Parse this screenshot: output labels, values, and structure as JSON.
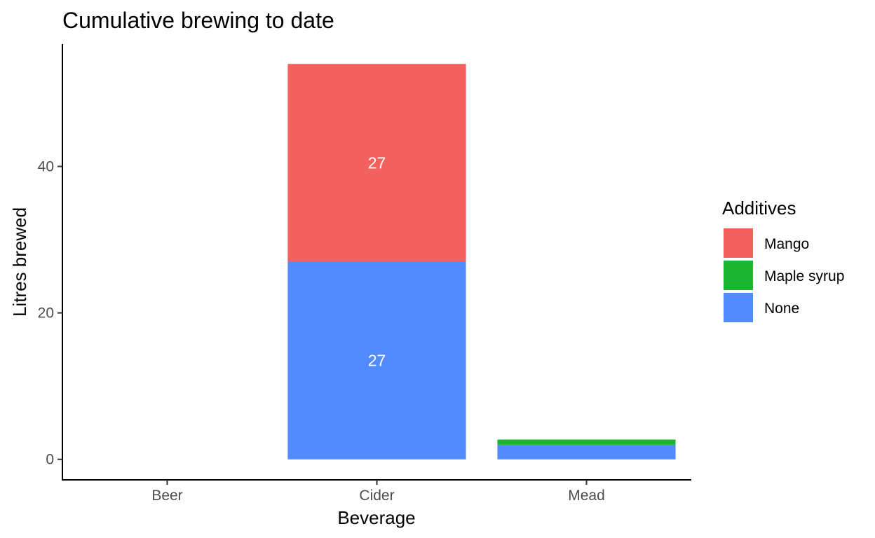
{
  "chart_data": {
    "type": "bar",
    "stacked": true,
    "title": "Cumulative brewing to date",
    "xlabel": "Beverage",
    "ylabel": "Litres brewed",
    "categories": [
      "Beer",
      "Cider",
      "Mead"
    ],
    "ylim": [
      -2.8,
      56.7
    ],
    "yticks": [
      0,
      20,
      40
    ],
    "series": [
      {
        "name": "None",
        "color": "#528bff",
        "values": [
          0,
          27,
          2
        ]
      },
      {
        "name": "Maple syrup",
        "color": "#1bb532",
        "values": [
          0,
          0,
          0.7
        ]
      },
      {
        "name": "Mango",
        "color": "#f2615c",
        "values": [
          0,
          27,
          0
        ]
      }
    ],
    "data_labels": [
      {
        "category": "Cider",
        "series": "None",
        "text": "27"
      },
      {
        "category": "Cider",
        "series": "Mango",
        "text": "27"
      }
    ],
    "legend": {
      "title": "Additives",
      "position": "right",
      "entries": [
        "Mango",
        "Maple syrup",
        "None"
      ]
    },
    "grid": false
  }
}
